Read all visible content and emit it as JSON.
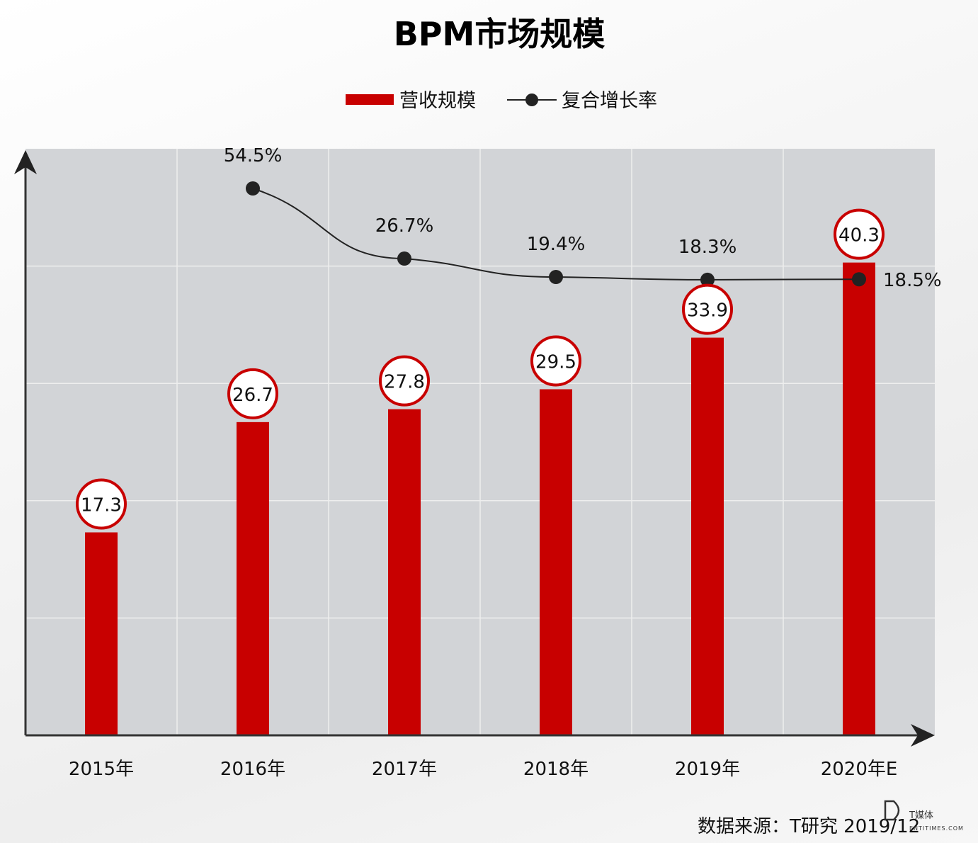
{
  "chart_data": {
    "type": "bar",
    "title": "BPM市场规模",
    "categories": [
      "2015年",
      "2016年",
      "2017年",
      "2018年",
      "2019年",
      "2020年E"
    ],
    "series": [
      {
        "name": "营收规模",
        "kind": "bar",
        "color": "#c80000",
        "values": [
          17.3,
          26.7,
          27.8,
          29.5,
          33.9,
          40.3
        ]
      },
      {
        "name": "复合增长率",
        "kind": "line",
        "color": "#222222",
        "values": [
          null,
          54.5,
          26.7,
          19.4,
          18.3,
          18.5
        ],
        "labels": [
          null,
          "54.5%",
          "26.7%",
          "19.4%",
          "18.3%",
          "18.5%"
        ]
      }
    ],
    "value_labels": [
      "17.3",
      "26.7",
      "27.8",
      "29.5",
      "33.9",
      "40.3"
    ],
    "ylim": [
      0,
      50
    ],
    "xlabel": "",
    "ylabel": "",
    "grid": true,
    "legend_position": "top-center"
  },
  "source_text": "数据来源：T研究 2019/12",
  "brand": {
    "name": "T媒体",
    "subtitle": "ENTITIMES.COM"
  }
}
